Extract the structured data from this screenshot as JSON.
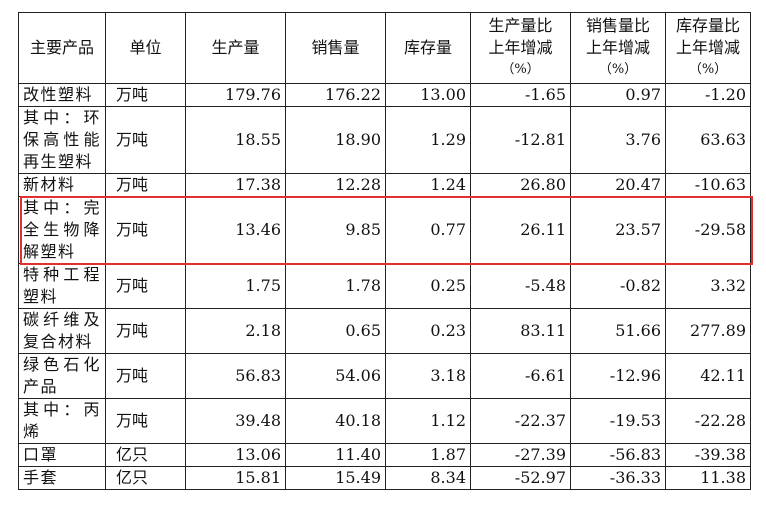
{
  "table": {
    "headers": [
      [
        "主要产品"
      ],
      [
        "单位"
      ],
      [
        "生产量"
      ],
      [
        "销售量"
      ],
      [
        "库存量"
      ],
      [
        "生产量比",
        "上年增减",
        "（%）"
      ],
      [
        "销售量比",
        "上年增减",
        "（%）"
      ],
      [
        "库存量比",
        "上年增减",
        "（%）"
      ]
    ],
    "rows": [
      [
        "改性塑料",
        "万吨",
        "179.76",
        "176.22",
        "13.00",
        "-1.65",
        "0.97",
        "-1.20"
      ],
      [
        "其中：环保高性能再生塑料",
        "万吨",
        "18.55",
        "18.90",
        "1.29",
        "-12.81",
        "3.76",
        "63.63"
      ],
      [
        "新材料",
        "万吨",
        "17.38",
        "12.28",
        "1.24",
        "26.80",
        "20.47",
        "-10.63"
      ],
      [
        "其中：完全生物降解塑料",
        "万吨",
        "13.46",
        "9.85",
        "0.77",
        "26.11",
        "23.57",
        "-29.58"
      ],
      [
        "特种工程塑料",
        "万吨",
        "1.75",
        "1.78",
        "0.25",
        "-5.48",
        "-0.82",
        "3.32"
      ],
      [
        "碳纤维及复合材料",
        "万吨",
        "2.18",
        "0.65",
        "0.23",
        "83.11",
        "51.66",
        "277.89"
      ],
      [
        "绿色石化产品",
        "万吨",
        "56.83",
        "54.06",
        "3.18",
        "-6.61",
        "-12.96",
        "42.11"
      ],
      [
        "其中：丙烯",
        "万吨",
        "39.48",
        "40.18",
        "1.12",
        "-22.37",
        "-19.53",
        "-22.28"
      ],
      [
        "口罩",
        "亿只",
        "13.06",
        "11.40",
        "1.87",
        "-27.39",
        "-56.83",
        "-39.38"
      ],
      [
        "手套",
        "亿只",
        "15.81",
        "15.49",
        "8.34",
        "-52.97",
        "-36.33",
        "11.38"
      ]
    ]
  }
}
